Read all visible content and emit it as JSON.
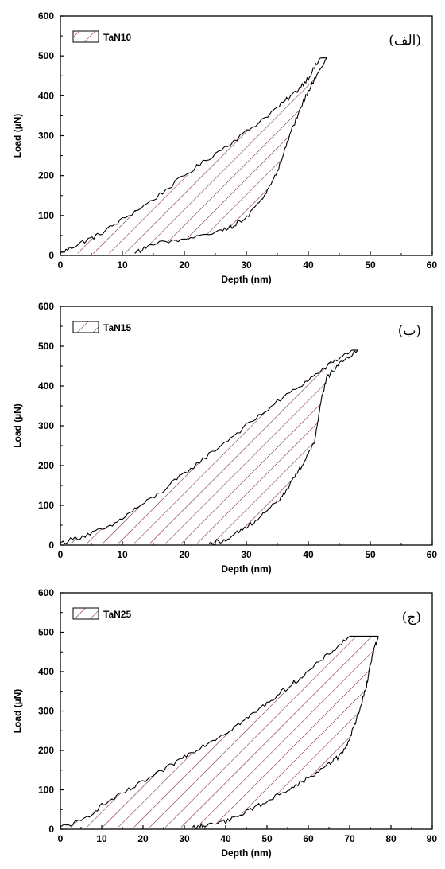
{
  "chart_data": [
    {
      "type": "area",
      "panel_label": "(الف)",
      "xlabel": "Depth (nm)",
      "ylabel": "Load (µN)",
      "xlim": [
        0,
        60
      ],
      "ylim": [
        0,
        600
      ],
      "xticks": [
        0,
        10,
        20,
        30,
        40,
        50,
        60
      ],
      "yticks": [
        0,
        100,
        200,
        300,
        400,
        500,
        600
      ],
      "legend": {
        "label": "TaN10",
        "position": "top-left",
        "pattern": "diagonal hatch"
      },
      "series": [
        {
          "name": "TaN10",
          "loading": {
            "x": [
              0,
              3,
              6,
              10,
              15,
              20,
              25,
              30,
              35,
              38,
              40,
              42
            ],
            "y": [
              5,
              30,
              50,
              90,
              140,
              200,
              255,
              310,
              370,
              410,
              445,
              495
            ]
          },
          "unloading": {
            "x": [
              43,
              41,
              39,
              37,
              35,
              33,
              31,
              28,
              25,
              20,
              15,
              12
            ],
            "y": [
              495,
              440,
              380,
              300,
              210,
              150,
              110,
              75,
              55,
              40,
              30,
              5
            ]
          }
        }
      ],
      "max_load": 495,
      "max_depth": 43,
      "colors": {
        "hatch": "#7a1c2b",
        "curve": "#000000"
      }
    },
    {
      "type": "area",
      "panel_label": "(ب)",
      "xlabel": "Depth (nm)",
      "ylabel": "Load (µN)",
      "xlim": [
        0,
        60
      ],
      "ylim": [
        0,
        600
      ],
      "xticks": [
        0,
        10,
        20,
        30,
        40,
        50,
        60
      ],
      "yticks": [
        0,
        100,
        200,
        300,
        400,
        500,
        600
      ],
      "legend": {
        "label": "TaN15",
        "position": "top-left",
        "pattern": "diagonal hatch"
      },
      "series": [
        {
          "name": "TaN15",
          "loading": {
            "x": [
              0,
              4,
              8,
              12,
              16,
              20,
              25,
              30,
              35,
              40,
              44,
              47
            ],
            "y": [
              5,
              25,
              45,
              90,
              130,
              180,
              240,
              300,
              360,
              415,
              460,
              490
            ]
          },
          "unloading": {
            "x": [
              48,
              45,
              43,
              42,
              41,
              39,
              37,
              35,
              33,
              30,
              27,
              24
            ],
            "y": [
              490,
              455,
              420,
              360,
              260,
              200,
              150,
              110,
              80,
              45,
              15,
              5
            ]
          }
        }
      ],
      "max_load": 490,
      "max_depth": 48,
      "colors": {
        "hatch": "#7a1c2b",
        "curve": "#000000"
      }
    },
    {
      "type": "area",
      "panel_label": "(ج)",
      "xlabel": "Depth (nm)",
      "ylabel": "Load (µN)",
      "xlim": [
        0,
        90
      ],
      "ylim": [
        0,
        600
      ],
      "xticks": [
        0,
        10,
        20,
        30,
        40,
        50,
        60,
        70,
        80,
        90
      ],
      "yticks": [
        0,
        100,
        200,
        300,
        400,
        500,
        600
      ],
      "legend": {
        "label": "TaN25",
        "position": "top-left",
        "pattern": "diagonal hatch"
      },
      "series": [
        {
          "name": "TaN25",
          "loading": {
            "x": [
              0,
              5,
              10,
              15,
              20,
              25,
              30,
              35,
              40,
              45,
              50,
              55,
              60,
              65,
              70
            ],
            "y": [
              5,
              20,
              60,
              90,
              120,
              150,
              185,
              215,
              245,
              280,
              320,
              360,
              400,
              445,
              490
            ]
          },
          "unloading": {
            "x": [
              77,
              76,
              75,
              74,
              72,
              70,
              68,
              65,
              60,
              55,
              50,
              45,
              40,
              35,
              32
            ],
            "y": [
              490,
              460,
              420,
              360,
              290,
              230,
              190,
              165,
              130,
              100,
              70,
              45,
              20,
              10,
              5
            ]
          }
        }
      ],
      "max_load": 490,
      "max_depth": 77,
      "colors": {
        "hatch": "#7a1c2b",
        "curve": "#000000"
      }
    }
  ]
}
